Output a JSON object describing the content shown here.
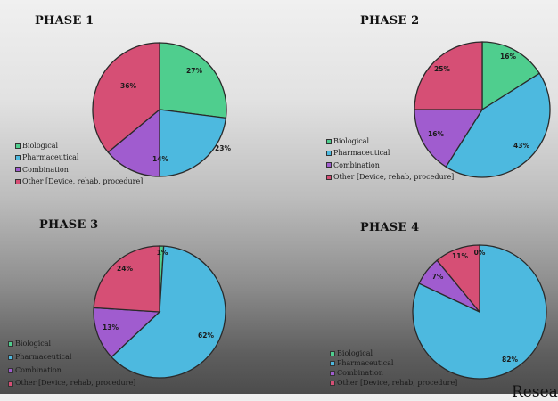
{
  "categories": [
    "Biological",
    "Pharmaceutical",
    "Combination",
    "Other [Device, rehab, procedure]"
  ],
  "colors": {
    "Biological": "#4fce8e",
    "Pharmaceutical": "#4db9df",
    "Combination": "#a05ccf",
    "Other": "#d64f75"
  },
  "footer_cutoff_text": "Resea",
  "chart_data": [
    {
      "type": "pie",
      "title": "PHASE 1",
      "categories": [
        "Biological",
        "Pharmaceutical",
        "Combination",
        "Other [Device, rehab, procedure]"
      ],
      "values": [
        27,
        23,
        14,
        36
      ],
      "labels": [
        "27%",
        "23%",
        "14%",
        "36%"
      ],
      "legend_position": "left-bottom"
    },
    {
      "type": "pie",
      "title": "PHASE 2",
      "categories": [
        "Biological",
        "Pharmaceutical",
        "Combination",
        "Other [Device, rehab, procedure]"
      ],
      "values": [
        16,
        43,
        16,
        25
      ],
      "labels": [
        "16%",
        "43%",
        "16%",
        "25%"
      ],
      "legend_position": "left-bottom"
    },
    {
      "type": "pie",
      "title": "PHASE 3",
      "categories": [
        "Biological",
        "Pharmaceutical",
        "Combination",
        "Other [Device, rehab, procedure]"
      ],
      "values": [
        1,
        62,
        13,
        24
      ],
      "labels": [
        "1%",
        "62%",
        "13%",
        "24%"
      ],
      "legend_position": "left-bottom"
    },
    {
      "type": "pie",
      "title": "PHASE 4",
      "categories": [
        "Biological",
        "Pharmaceutical",
        "Combination",
        "Other [Device, rehab, procedure]"
      ],
      "values": [
        0,
        82,
        7,
        11
      ],
      "labels": [
        "0%",
        "82%",
        "7%",
        "11%"
      ],
      "legend_position": "left-bottom"
    }
  ]
}
